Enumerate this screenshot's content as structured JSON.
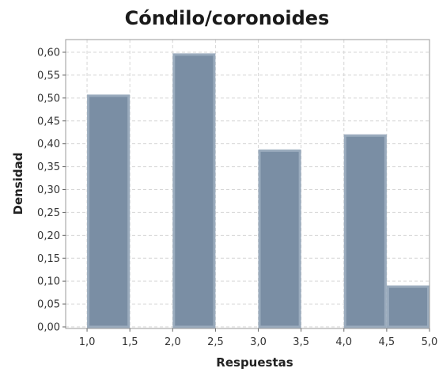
{
  "chart_data": {
    "type": "bar",
    "title": "Cóndilo/coronoides",
    "xlabel": "Respuestas",
    "ylabel": "Densidad",
    "xlim": [
      0.75,
      5.0
    ],
    "ylim": [
      0,
      0.62
    ],
    "x_ticks": [
      1.0,
      1.5,
      2.0,
      2.5,
      3.0,
      3.5,
      4.0,
      4.5,
      5.0
    ],
    "x_tick_labels": [
      "1,0",
      "1,5",
      "2,0",
      "2,5",
      "3,0",
      "3,5",
      "4,0",
      "4,5",
      "5,0"
    ],
    "y_ticks": [
      0,
      0.05,
      0.1,
      0.15,
      0.2,
      0.25,
      0.3,
      0.35,
      0.4,
      0.45,
      0.5,
      0.55,
      0.6
    ],
    "y_tick_labels": [
      "0,00",
      "0,05",
      "0,10",
      "0,15",
      "0,20",
      "0,25",
      "0,30",
      "0,35",
      "0,40",
      "0,45",
      "0,50",
      "0,55",
      "0,60"
    ],
    "grid": true,
    "bars": [
      {
        "x0": 1.0,
        "x1": 1.5,
        "value": 0.505
      },
      {
        "x0": 2.0,
        "x1": 2.5,
        "value": 0.595
      },
      {
        "x0": 3.0,
        "x1": 3.5,
        "value": 0.385
      },
      {
        "x0": 4.0,
        "x1": 4.5,
        "value": 0.418
      },
      {
        "x0": 4.5,
        "x1": 5.0,
        "value": 0.088
      }
    ],
    "bar_color": "#7a8ea4",
    "bar_edge_color": "#9aabbd"
  }
}
